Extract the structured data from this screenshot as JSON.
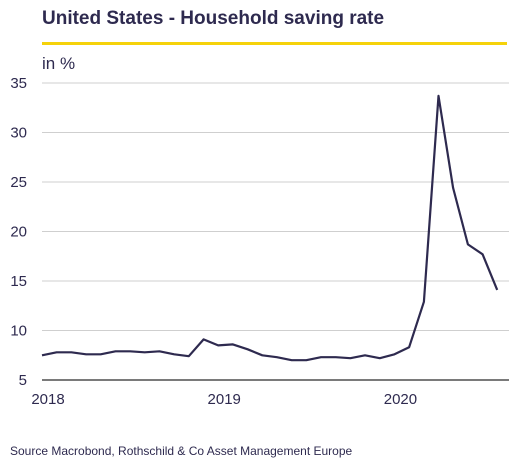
{
  "header": {
    "title": "United States - Household saving rate",
    "unit_label": "in %"
  },
  "footer": {
    "source": "Source Macrobond, Rothschild & Co Asset Management Europe"
  },
  "colors": {
    "title_rule": "#f5d20a",
    "series_line": "#2e2a4f",
    "grid": "#cfcfcf",
    "baseline": "#7a7a7a"
  },
  "chart_data": {
    "type": "line",
    "title": "United States - Household saving rate",
    "ylabel": "in %",
    "xlabel": "",
    "ylim": [
      5,
      35
    ],
    "xlim": [
      2018.0,
      2020.65
    ],
    "y_ticks": [
      5,
      10,
      15,
      20,
      25,
      30,
      35
    ],
    "x_ticks": [
      2018,
      2019,
      2020
    ],
    "grid": true,
    "series": [
      {
        "x": [
          2018.0,
          2018.083,
          2018.167,
          2018.25,
          2018.333,
          2018.417,
          2018.5,
          2018.583,
          2018.667,
          2018.75,
          2018.833,
          2018.917,
          2019.0,
          2019.083,
          2019.167,
          2019.25,
          2019.333,
          2019.417,
          2019.5,
          2019.583,
          2019.667,
          2019.75,
          2019.833,
          2019.917,
          2020.0,
          2020.083,
          2020.167,
          2020.25,
          2020.333,
          2020.417,
          2020.5,
          2020.583
        ],
        "y": [
          7.5,
          7.8,
          7.8,
          7.6,
          7.6,
          7.9,
          7.9,
          7.8,
          7.9,
          7.6,
          7.4,
          9.1,
          8.5,
          8.6,
          8.1,
          7.5,
          7.3,
          7.0,
          7.0,
          7.3,
          7.3,
          7.2,
          7.5,
          7.2,
          7.6,
          8.3,
          12.9,
          33.7,
          24.4,
          18.7,
          17.7,
          14.1
        ]
      }
    ]
  }
}
